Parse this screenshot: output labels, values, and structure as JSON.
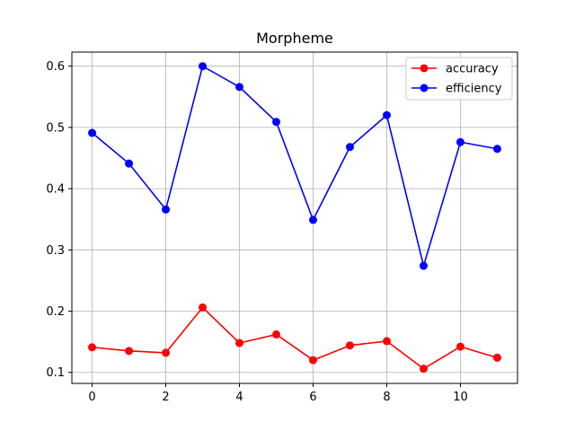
{
  "chart_data": {
    "type": "line",
    "title": "Morpheme",
    "xlabel": "",
    "ylabel": "",
    "x": [
      0,
      1,
      2,
      3,
      4,
      5,
      6,
      7,
      8,
      9,
      10,
      11
    ],
    "xlim": [
      -0.55,
      11.55
    ],
    "ylim": [
      0.082,
      0.623
    ],
    "xticks": [
      0,
      2,
      4,
      6,
      8,
      10
    ],
    "yticks": [
      0.1,
      0.2,
      0.3,
      0.4,
      0.5,
      0.6
    ],
    "xtick_labels": [
      "0",
      "2",
      "4",
      "6",
      "8",
      "10"
    ],
    "ytick_labels": [
      "0.1",
      "0.2",
      "0.3",
      "0.4",
      "0.5",
      "0.6"
    ],
    "grid": true,
    "legend_position": "top-right",
    "series": [
      {
        "name": "accuracy",
        "color": "#ff0000",
        "values": [
          0.141,
          0.135,
          0.132,
          0.206,
          0.148,
          0.162,
          0.12,
          0.144,
          0.151,
          0.106,
          0.142,
          0.124
        ]
      },
      {
        "name": "efficiency",
        "color": "#0000ff",
        "values": [
          0.491,
          0.441,
          0.366,
          0.6,
          0.566,
          0.509,
          0.349,
          0.468,
          0.52,
          0.274,
          0.476,
          0.465
        ]
      }
    ]
  }
}
